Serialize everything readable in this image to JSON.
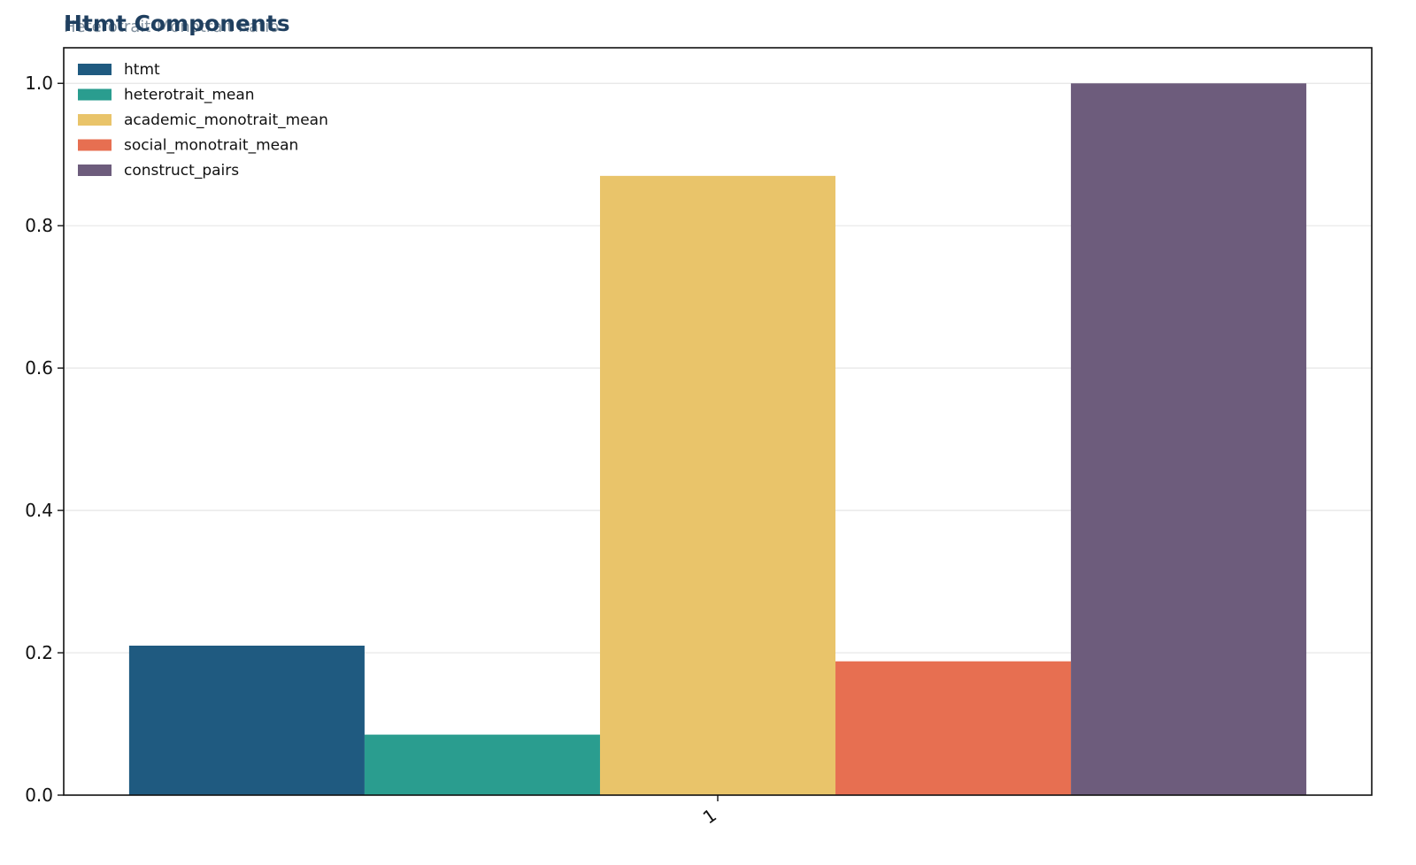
{
  "chart_data": {
    "type": "bar",
    "title": "Htmt Components",
    "subtitle": "Heterotrait-Monotrait Ratio",
    "xlabel": "",
    "ylabel": "",
    "categories": [
      "1"
    ],
    "ylim": [
      0,
      1.05
    ],
    "yticks": [
      "0.0",
      "0.2",
      "0.4",
      "0.6",
      "0.8",
      "1.0"
    ],
    "grid": "horizontal",
    "legend_position": "top-left",
    "series": [
      {
        "name": "htmt",
        "values": [
          0.21
        ],
        "color": "#1f5a80"
      },
      {
        "name": "heterotrait_mean",
        "values": [
          0.085
        ],
        "color": "#2a9d8f"
      },
      {
        "name": "academic_monotrait_mean",
        "values": [
          0.87
        ],
        "color": "#e9c46a"
      },
      {
        "name": "social_monotrait_mean",
        "values": [
          0.188
        ],
        "color": "#e76f51"
      },
      {
        "name": "construct_pairs",
        "values": [
          1.0
        ],
        "color": "#6d5c7c"
      }
    ]
  }
}
